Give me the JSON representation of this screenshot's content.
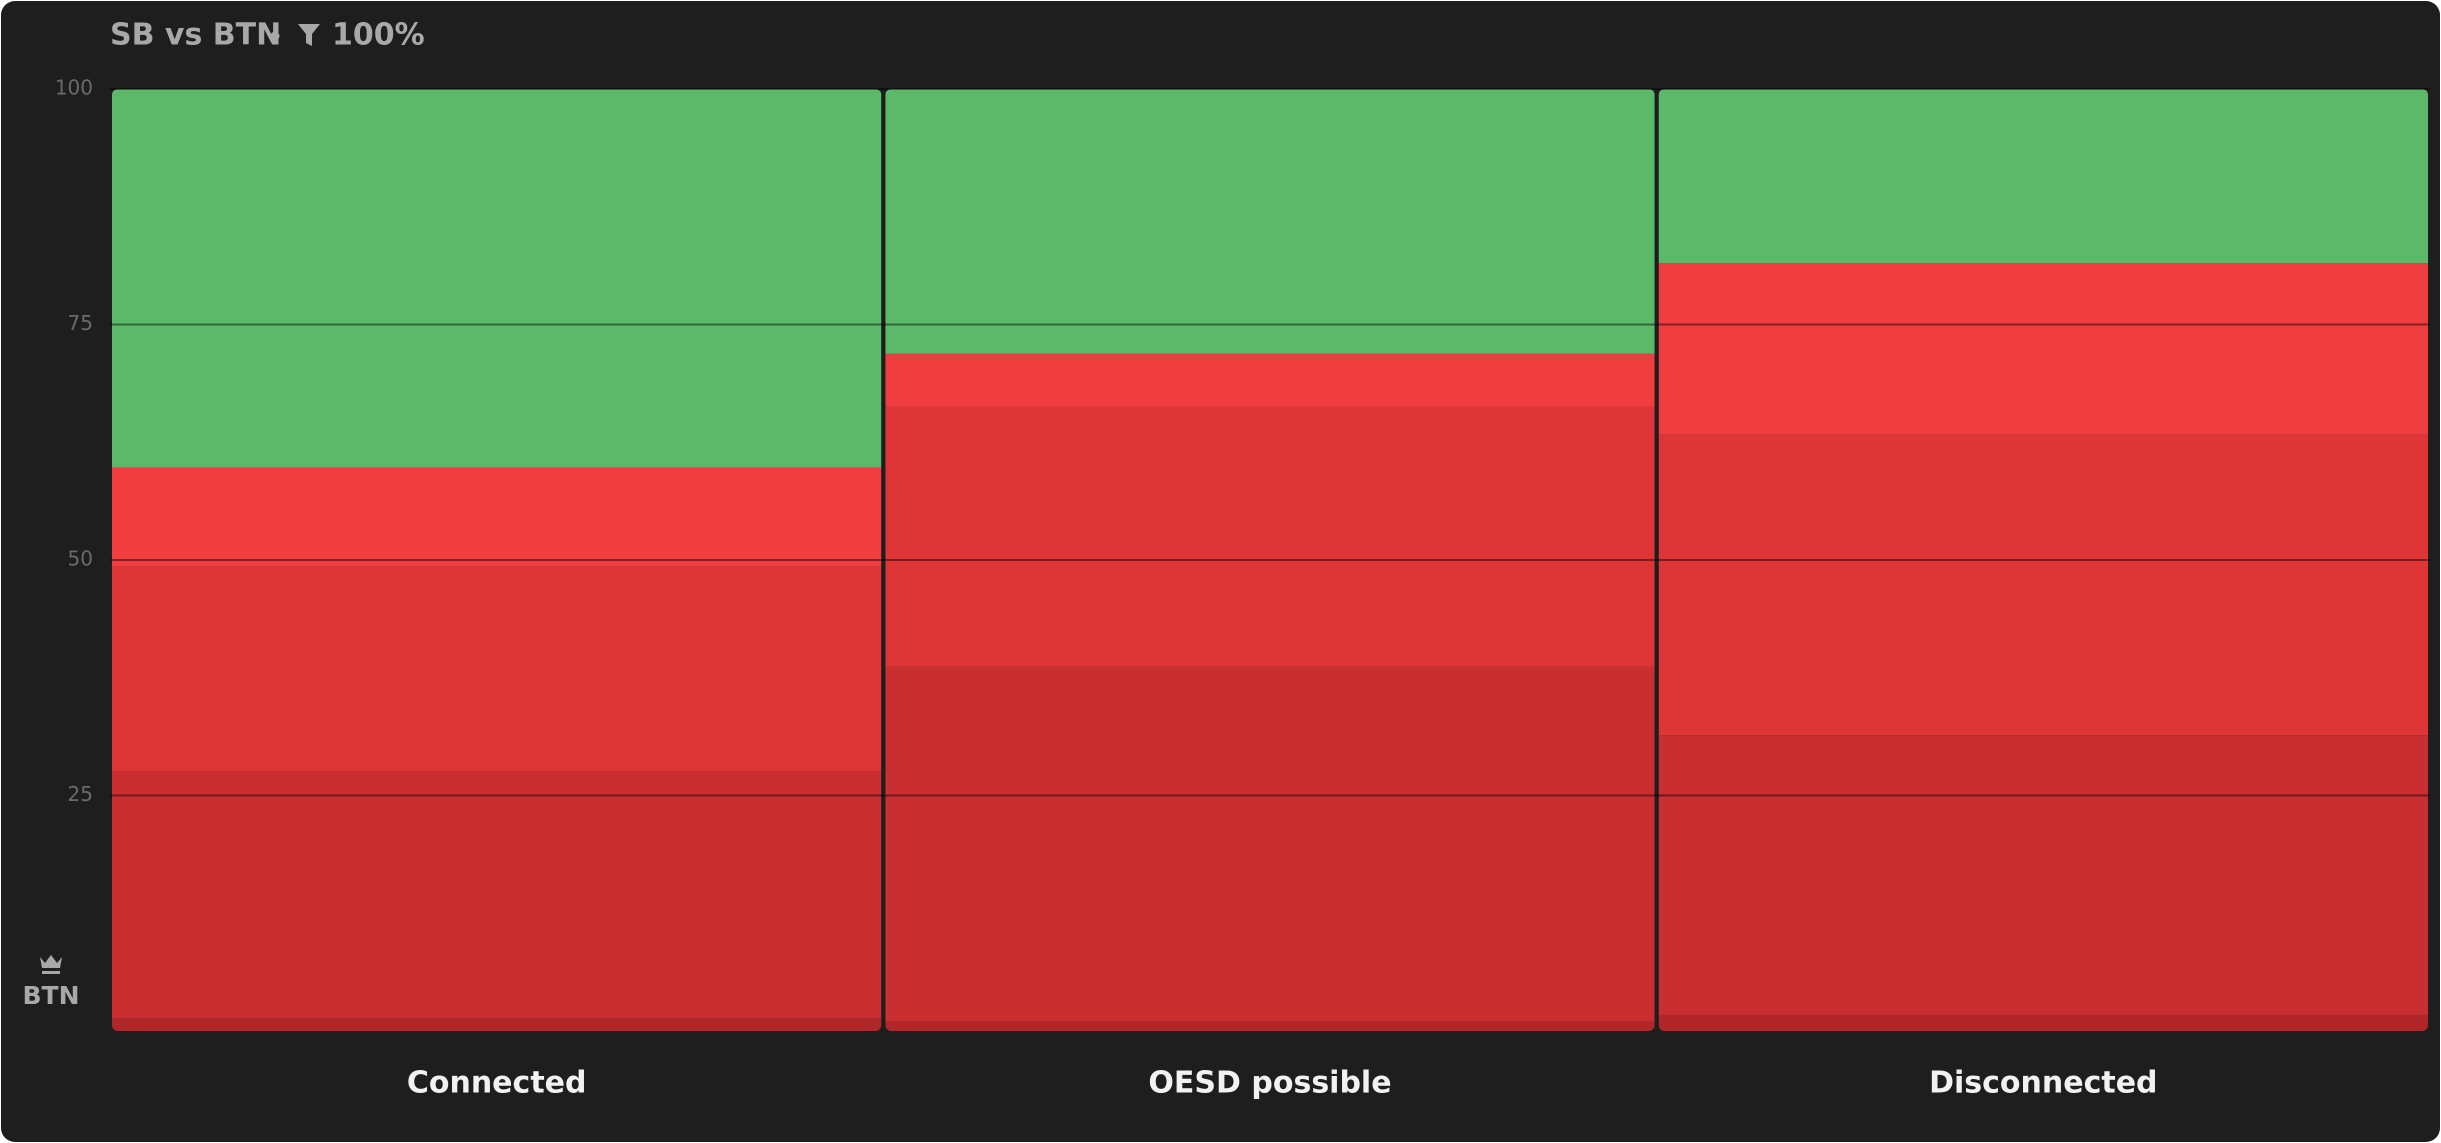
{
  "chart_data": {
    "type": "stacked-bar",
    "title": "SB vs BTN",
    "filter_label": "100%",
    "player_label": "BTN",
    "categories": [
      "Connected",
      "OESD possible",
      "Disconnected"
    ],
    "series": [
      {
        "color": "#b12729",
        "values": [
          1.3,
          1.0,
          1.7
        ]
      },
      {
        "color": "#c92f30",
        "values": [
          26.3,
          37.7,
          29.7
        ]
      },
      {
        "color": "#de3637",
        "values": [
          21.7,
          27.6,
          31.9
        ]
      },
      {
        "color": "#ef3d40",
        "values": [
          10.5,
          5.6,
          18.2
        ]
      },
      {
        "color": "#5cb96a",
        "values": [
          40.2,
          28.1,
          18.5
        ]
      }
    ],
    "ylim": [
      0,
      100
    ],
    "yticks": [
      25,
      50,
      75,
      100
    ],
    "grid": true
  }
}
